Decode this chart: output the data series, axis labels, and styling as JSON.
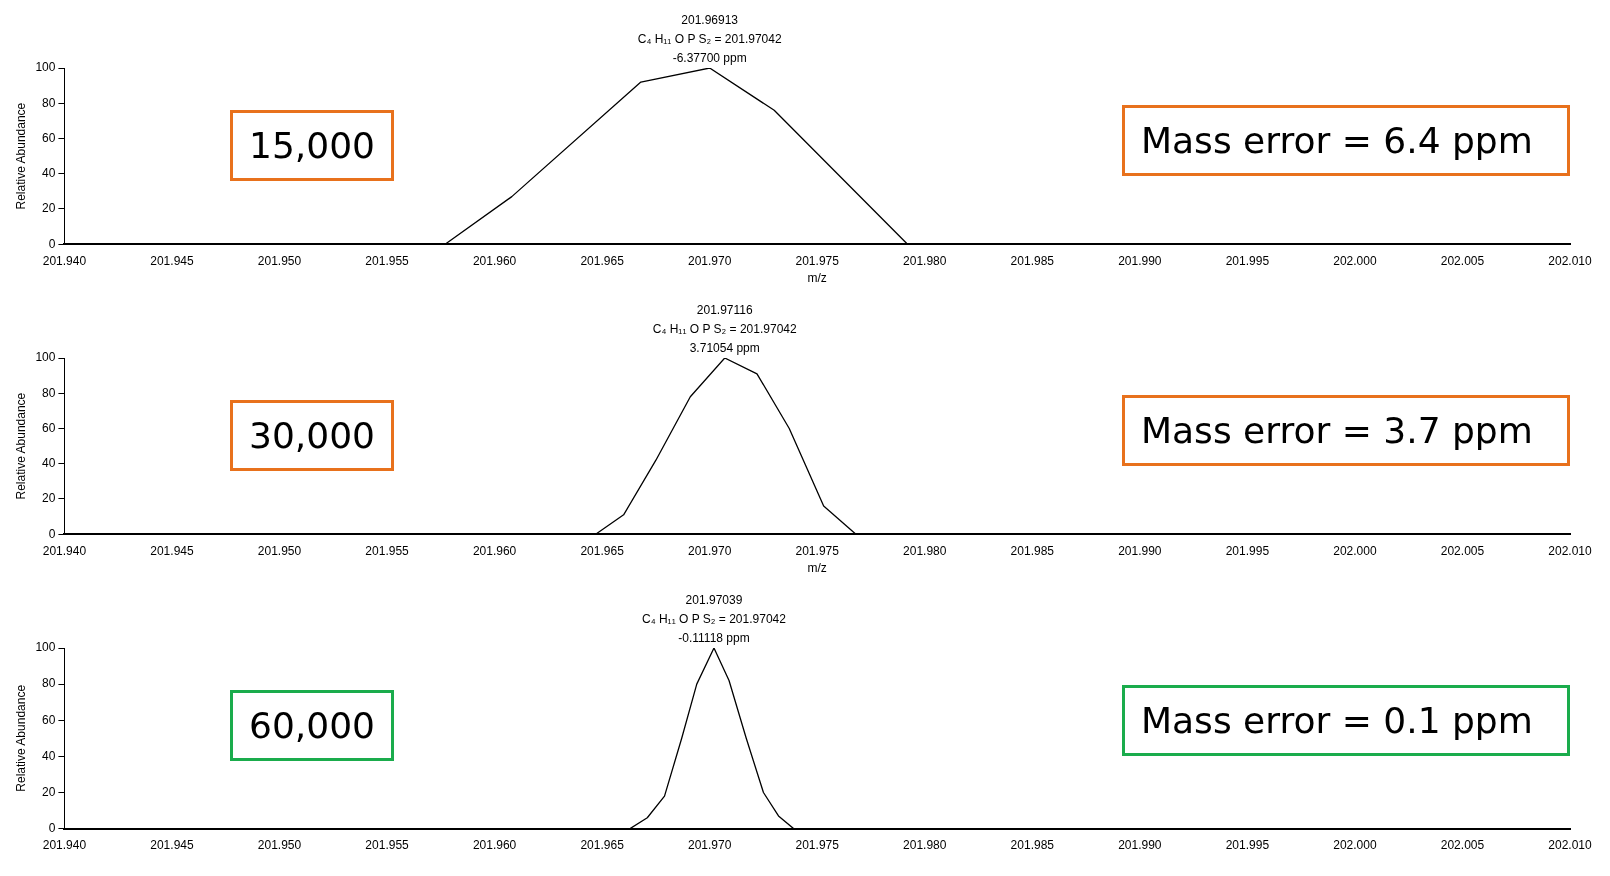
{
  "chart_data": [
    {
      "type": "line",
      "xlabel": "m/z",
      "ylabel": "Relative Abundance",
      "series": [
        {
          "color": "#000000",
          "x": [
            201.9577,
            201.9608,
            201.9668,
            201.97,
            201.973,
            201.9792
          ],
          "values": [
            0,
            27,
            92,
            100,
            76,
            0
          ]
        }
      ],
      "xlim": [
        201.94,
        202.01
      ],
      "ylim": [
        0,
        100
      ],
      "xticks": [
        {
          "value": 201.94,
          "label": "201.940"
        },
        {
          "value": 201.945,
          "label": "201.945"
        },
        {
          "value": 201.95,
          "label": "201.950"
        },
        {
          "value": 201.955,
          "label": "201.955"
        },
        {
          "value": 201.96,
          "label": "201.960"
        },
        {
          "value": 201.965,
          "label": "201.965"
        },
        {
          "value": 201.97,
          "label": "201.970"
        },
        {
          "value": 201.975,
          "label": "201.975"
        },
        {
          "value": 201.98,
          "label": "201.980"
        },
        {
          "value": 201.985,
          "label": "201.985"
        },
        {
          "value": 201.99,
          "label": "201.990"
        },
        {
          "value": 201.995,
          "label": "201.995"
        },
        {
          "value": 202.0,
          "label": "202.000"
        },
        {
          "value": 202.005,
          "label": "202.005"
        },
        {
          "value": 202.01,
          "label": "202.010"
        }
      ],
      "yticks": [
        0,
        20,
        40,
        60,
        80,
        100
      ],
      "grid": false,
      "legend": false,
      "marker": "none",
      "line_style": "solid",
      "annotations": [
        {
          "text": "201.96913\nC₄ H₁₁ O P S₂ = 201.97042\n-6.37700 ppm",
          "x": 201.97,
          "y": 100
        },
        "15,000",
        "Mass error = 6.4 ppm"
      ]
    },
    {
      "type": "line",
      "xlabel": "m/z",
      "ylabel": "Relative Abundance",
      "series": [
        {
          "color": "#000000",
          "x": [
            201.94,
            201.9647,
            201.966,
            201.9675,
            201.9691,
            201.9707,
            201.9722,
            201.9737,
            201.9753,
            201.9768,
            202.01
          ],
          "values": [
            0,
            0,
            11,
            42,
            78,
            100,
            91,
            60,
            16,
            0,
            0
          ]
        }
      ],
      "xlim": [
        201.94,
        202.01
      ],
      "ylim": [
        0,
        100
      ],
      "xticks": [
        {
          "value": 201.94,
          "label": "201.940"
        },
        {
          "value": 201.945,
          "label": "201.945"
        },
        {
          "value": 201.95,
          "label": "201.950"
        },
        {
          "value": 201.955,
          "label": "201.955"
        },
        {
          "value": 201.96,
          "label": "201.960"
        },
        {
          "value": 201.965,
          "label": "201.965"
        },
        {
          "value": 201.97,
          "label": "201.970"
        },
        {
          "value": 201.975,
          "label": "201.975"
        },
        {
          "value": 201.98,
          "label": "201.980"
        },
        {
          "value": 201.985,
          "label": "201.985"
        },
        {
          "value": 201.99,
          "label": "201.990"
        },
        {
          "value": 201.995,
          "label": "201.995"
        },
        {
          "value": 202.0,
          "label": "202.000"
        },
        {
          "value": 202.005,
          "label": "202.005"
        },
        {
          "value": 202.01,
          "label": "202.010"
        }
      ],
      "yticks": [
        0,
        20,
        40,
        60,
        80,
        100
      ],
      "grid": false,
      "legend": false,
      "marker": "none",
      "line_style": "solid",
      "annotations": [
        {
          "text": "201.97116\nC₄ H₁₁ O P S₂ = 201.97042\n3.71054 ppm",
          "x": 201.9707,
          "y": 100
        },
        "30,000",
        "Mass error = 3.7 ppm"
      ]
    },
    {
      "type": "line",
      "ylabel": "Relative Abundance",
      "series": [
        {
          "color": "#000000",
          "x": [
            201.94,
            201.9663,
            201.9671,
            201.9679,
            201.9687,
            201.9694,
            201.9702,
            201.9709,
            201.9717,
            201.9725,
            201.9732,
            201.9739,
            202.01
          ],
          "values": [
            0,
            0,
            6,
            18,
            50,
            80,
            100,
            82,
            50,
            20,
            7,
            0,
            0
          ]
        }
      ],
      "xlim": [
        201.94,
        202.01
      ],
      "ylim": [
        0,
        100
      ],
      "xticks": [
        {
          "value": 201.94,
          "label": "201.940"
        },
        {
          "value": 201.945,
          "label": "201.945"
        },
        {
          "value": 201.95,
          "label": "201.950"
        },
        {
          "value": 201.955,
          "label": "201.955"
        },
        {
          "value": 201.96,
          "label": "201.960"
        },
        {
          "value": 201.965,
          "label": "201.965"
        },
        {
          "value": 201.97,
          "label": "201.970"
        },
        {
          "value": 201.975,
          "label": "201.975"
        },
        {
          "value": 201.98,
          "label": "201.980"
        },
        {
          "value": 201.985,
          "label": "201.985"
        },
        {
          "value": 201.99,
          "label": "201.990"
        },
        {
          "value": 201.995,
          "label": "201.995"
        },
        {
          "value": 202.0,
          "label": "202.000"
        },
        {
          "value": 202.005,
          "label": "202.005"
        },
        {
          "value": 202.01,
          "label": "202.010"
        }
      ],
      "yticks": [
        0,
        20,
        40,
        60,
        80,
        100
      ],
      "grid": false,
      "legend": false,
      "marker": "none",
      "line_style": "solid",
      "annotations": [
        {
          "text": "201.97039\nC₄ H₁₁ O P S₂ = 201.97042\n-0.11118 ppm",
          "x": 201.9702,
          "y": 100
        },
        "60,000",
        "Mass error = 0.1 ppm"
      ]
    }
  ]
}
